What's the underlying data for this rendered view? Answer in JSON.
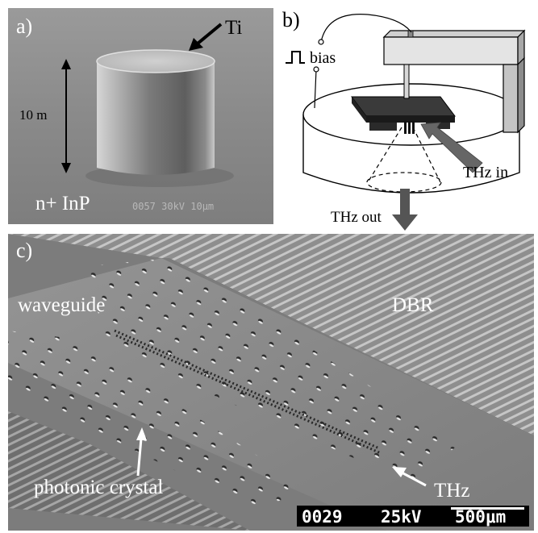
{
  "figure": {
    "panel_a": {
      "label": "a)",
      "metal_label": "Ti",
      "height_label": "10  m",
      "substrate_label": "n+ InP",
      "sem_info": "0057  30kV  10μm"
    },
    "panel_b": {
      "label": "b)",
      "bias_label": "bias",
      "thz_in_label": "THz in",
      "thz_out_label": "THz out"
    },
    "panel_c": {
      "label": "c)",
      "waveguide_label": "waveguide",
      "dbr_label": "DBR",
      "crystal_label": "photonic  crystal",
      "thz_label": "THz",
      "scale_id": "0029",
      "scale_voltage": "25kV",
      "scale_length": "500μm"
    }
  }
}
